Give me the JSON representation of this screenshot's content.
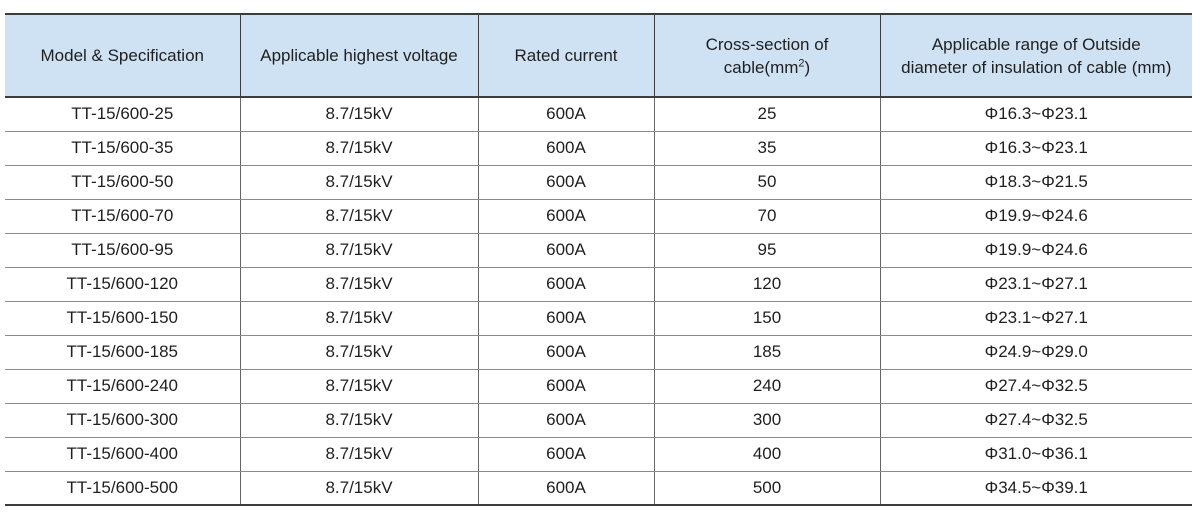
{
  "colors": {
    "header_bg": "#cfe2f3",
    "border_dark": "#3d3d3d",
    "row_divider": "#8a8a8a",
    "column_divider": "#666666",
    "text": "#1f1f1f",
    "page_bg": "#ffffff"
  },
  "table": {
    "headers": {
      "model": "Model & Specification",
      "voltage": "Applicable highest voltage",
      "current": "Rated current",
      "cross_section_line1": "Cross-section of",
      "cross_section_line2_pre": "cable(mm",
      "cross_section_sup": "2",
      "cross_section_line2_post": ")",
      "range_line1": "Applicable range of Outside",
      "range_line2": "diameter of insulation of cable (mm)"
    },
    "rows": [
      {
        "model": "TT-15/600-25",
        "voltage": "8.7/15kV",
        "current": "600A",
        "cross_section": "25",
        "diameter_range": "Φ16.3~Φ23.1"
      },
      {
        "model": "TT-15/600-35",
        "voltage": "8.7/15kV",
        "current": "600A",
        "cross_section": "35",
        "diameter_range": "Φ16.3~Φ23.1"
      },
      {
        "model": "TT-15/600-50",
        "voltage": "8.7/15kV",
        "current": "600A",
        "cross_section": "50",
        "diameter_range": "Φ18.3~Φ21.5"
      },
      {
        "model": "TT-15/600-70",
        "voltage": "8.7/15kV",
        "current": "600A",
        "cross_section": "70",
        "diameter_range": "Φ19.9~Φ24.6"
      },
      {
        "model": "TT-15/600-95",
        "voltage": "8.7/15kV",
        "current": "600A",
        "cross_section": "95",
        "diameter_range": "Φ19.9~Φ24.6"
      },
      {
        "model": "TT-15/600-120",
        "voltage": "8.7/15kV",
        "current": "600A",
        "cross_section": "120",
        "diameter_range": "Φ23.1~Φ27.1"
      },
      {
        "model": "TT-15/600-150",
        "voltage": "8.7/15kV",
        "current": "600A",
        "cross_section": "150",
        "diameter_range": "Φ23.1~Φ27.1"
      },
      {
        "model": "TT-15/600-185",
        "voltage": "8.7/15kV",
        "current": "600A",
        "cross_section": "185",
        "diameter_range": "Φ24.9~Φ29.0"
      },
      {
        "model": "TT-15/600-240",
        "voltage": "8.7/15kV",
        "current": "600A",
        "cross_section": "240",
        "diameter_range": "Φ27.4~Φ32.5"
      },
      {
        "model": "TT-15/600-300",
        "voltage": "8.7/15kV",
        "current": "600A",
        "cross_section": "300",
        "diameter_range": "Φ27.4~Φ32.5"
      },
      {
        "model": "TT-15/600-400",
        "voltage": "8.7/15kV",
        "current": "600A",
        "cross_section": "400",
        "diameter_range": "Φ31.0~Φ36.1"
      },
      {
        "model": "TT-15/600-500",
        "voltage": "8.7/15kV",
        "current": "600A",
        "cross_section": "500",
        "diameter_range": "Φ34.5~Φ39.1"
      }
    ]
  }
}
